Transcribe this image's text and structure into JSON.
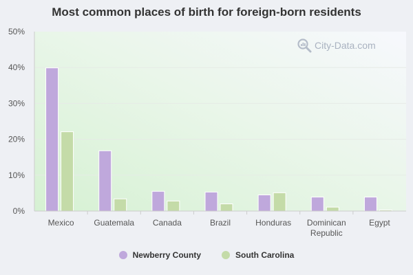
{
  "chart_data": {
    "type": "bar",
    "title": "Most common places of birth for foreign-born residents",
    "categories": [
      [
        "Mexico"
      ],
      [
        "Guatemala"
      ],
      [
        "Canada"
      ],
      [
        "Brazil"
      ],
      [
        "Honduras"
      ],
      [
        "Dominican",
        "Republic"
      ],
      [
        "Egypt"
      ]
    ],
    "series": [
      {
        "name": "Newberry County",
        "color": "#bfa8dc",
        "values": [
          39.9,
          16.8,
          5.5,
          5.3,
          4.5,
          3.9,
          3.9
        ]
      },
      {
        "name": "South Carolina",
        "color": "#c4dba8",
        "values": [
          22.1,
          3.4,
          2.8,
          2.0,
          5.1,
          1.1,
          0.3
        ]
      }
    ],
    "y_ticks": [
      "0%",
      "10%",
      "20%",
      "30%",
      "40%",
      "50%"
    ],
    "ylim": [
      0,
      50
    ],
    "grid": true,
    "legend_position": "bottom"
  },
  "watermark": {
    "text": "City-Data.com",
    "icon": "magnifier-icon"
  }
}
